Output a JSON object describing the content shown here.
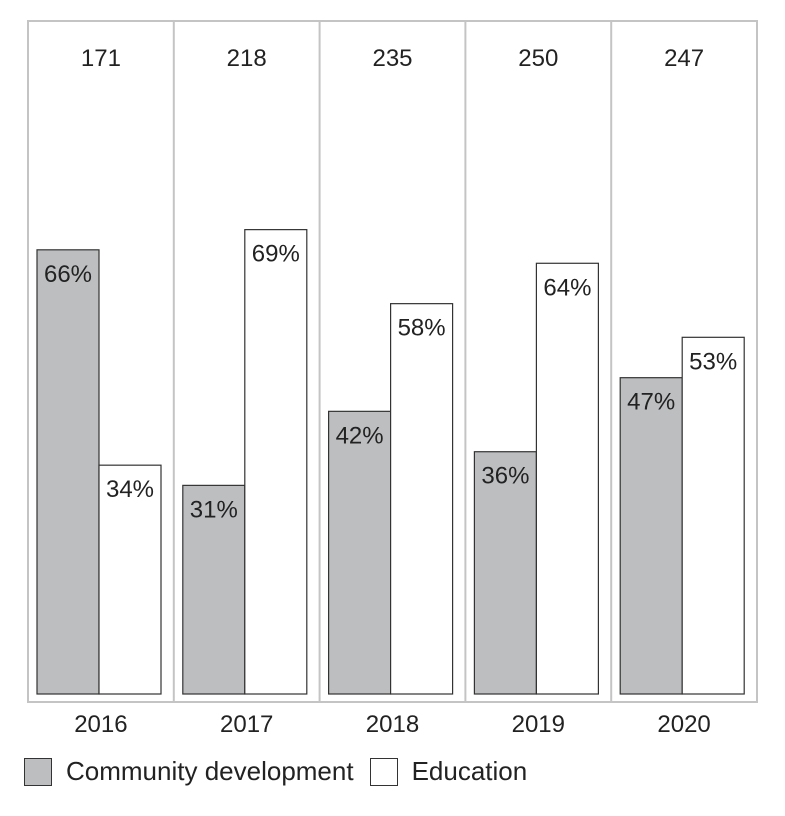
{
  "chart_data": {
    "type": "bar",
    "categories": [
      "2016",
      "2017",
      "2018",
      "2019",
      "2020"
    ],
    "totals": [
      171,
      218,
      235,
      250,
      247
    ],
    "series": [
      {
        "name": "Community development",
        "values": [
          66,
          31,
          42,
          36,
          47
        ],
        "labels": [
          "66%",
          "31%",
          "42%",
          "36%",
          "47%"
        ],
        "color": "#bdbec0"
      },
      {
        "name": "Education",
        "values": [
          34,
          69,
          58,
          64,
          53
        ],
        "labels": [
          "34%",
          "69%",
          "58%",
          "64%",
          "53%"
        ],
        "color": "#ffffff"
      }
    ],
    "ylim": [
      0,
      100
    ],
    "value_unit": "%",
    "colors": {
      "panel_border": "#c4c4c4",
      "bar_stroke": "#333333",
      "text": "#222222"
    }
  }
}
